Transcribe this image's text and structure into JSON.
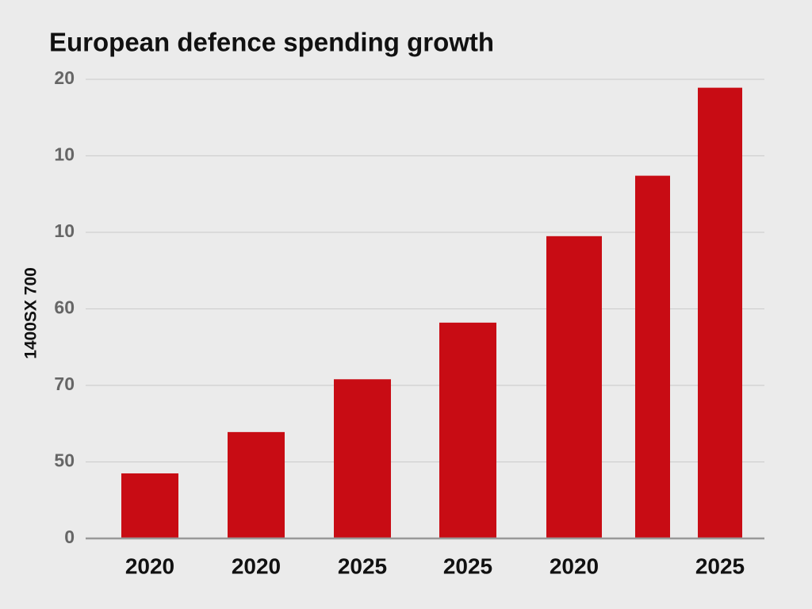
{
  "chart_data": {
    "type": "bar",
    "title": "European defence spending growth",
    "y_label": "1400SX 700",
    "categories": [
      "2020",
      "2020",
      "2025",
      "2025",
      "2020",
      null,
      "2025"
    ],
    "values": [
      0.85,
      1.39,
      2.08,
      2.82,
      3.95,
      4.74,
      5.89
    ],
    "color": "#c80c14",
    "ylim": [
      0,
      6
    ],
    "yticks": [
      0,
      {
        "value": 1,
        "label": "50"
      },
      {
        "value": 2,
        "label": "70"
      },
      {
        "value": 3,
        "label": "60"
      },
      {
        "value": 4,
        "label": "10"
      },
      {
        "value": 5,
        "label": "10"
      },
      {
        "value": 6,
        "label": "20"
      }
    ],
    "grid": true
  }
}
